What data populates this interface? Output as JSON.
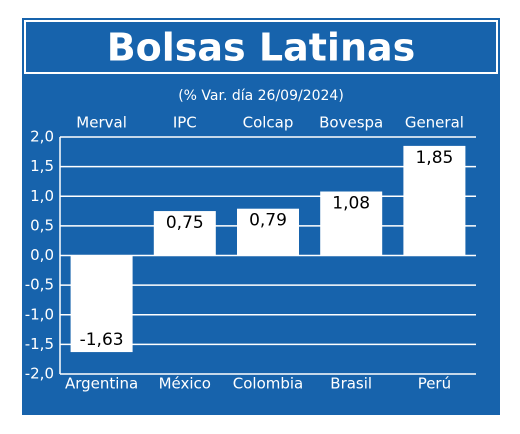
{
  "chart_data": {
    "type": "bar",
    "title": "Bolsas Latinas",
    "subtitle": "(% Var. día 26/09/2024)",
    "index_names": [
      "Merval",
      "IPC",
      "Colcap",
      "Bovespa",
      "General"
    ],
    "categories": [
      "Argentina",
      "México",
      "Colombia",
      "Brasil",
      "Perú"
    ],
    "values": [
      -1.63,
      0.75,
      0.79,
      1.08,
      1.85
    ],
    "value_labels": [
      "-1,63",
      "0,75",
      "0,79",
      "1,08",
      "1,85"
    ],
    "color": "#ffffff",
    "ylim": [
      -2.0,
      2.0
    ],
    "yticks": [
      {
        "value": -2.0,
        "label": "-2,0"
      },
      {
        "value": -1.5,
        "label": "-1,5"
      },
      {
        "value": -1.0,
        "label": "-1,0"
      },
      {
        "value": -0.5,
        "label": "-0,5"
      },
      {
        "value": 0.0,
        "label": "0,0"
      },
      {
        "value": 0.5,
        "label": "0,5"
      },
      {
        "value": 1.0,
        "label": "1,0"
      },
      {
        "value": 1.5,
        "label": "1,5"
      },
      {
        "value": 2.0,
        "label": "2,0"
      }
    ],
    "grid": true
  }
}
